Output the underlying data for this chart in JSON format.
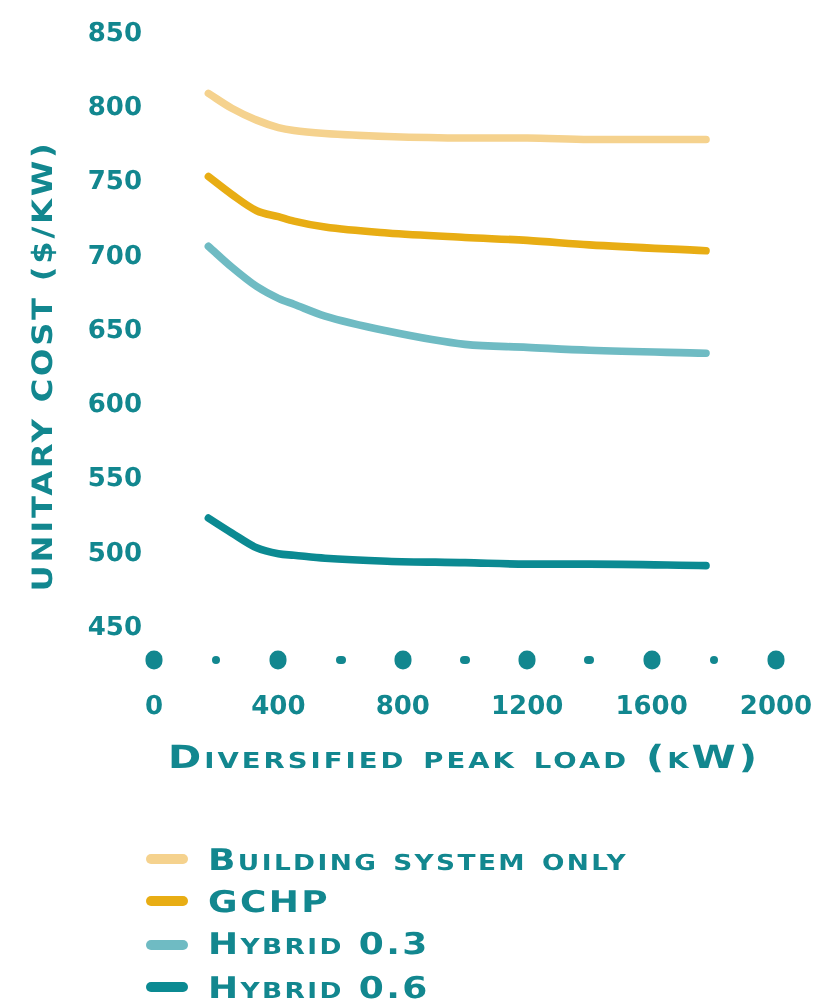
{
  "chart_data": {
    "type": "line",
    "xlabel": "Diversified peak load (kW)",
    "ylabel": "UNITARY COST ($/KW)",
    "x": [
      175,
      250,
      330,
      400,
      450,
      550,
      750,
      1000,
      1200,
      1400,
      1775
    ],
    "series": [
      {
        "name": "Building system only",
        "color": "#f5d28e",
        "values": [
          810,
          800,
          792,
          787,
          785,
          783,
          781,
          780,
          780,
          779,
          779
        ]
      },
      {
        "name": "GCHP",
        "color": "#e8ad14",
        "values": [
          754,
          742,
          731,
          727,
          724,
          720,
          716,
          713,
          711,
          708,
          704
        ]
      },
      {
        "name": "Hybrid 0.3",
        "color": "#6fbbc3",
        "values": [
          707,
          693,
          680,
          672,
          668,
          660,
          650,
          641,
          639,
          637,
          635
        ]
      },
      {
        "name": "Hybrid 0.6",
        "color": "#0b8a92",
        "values": [
          524,
          514,
          504,
          500,
          499,
          497,
          495,
          494,
          493,
          493,
          492
        ]
      }
    ],
    "xlim": [
      0,
      2000
    ],
    "xticks": [
      0,
      400,
      800,
      1200,
      1600,
      2000
    ],
    "ylim": [
      450,
      850
    ],
    "yticks": [
      450,
      500,
      550,
      600,
      650,
      700,
      750,
      800,
      850
    ],
    "legend": "bottom",
    "marker": "none",
    "line_style": "solid"
  }
}
